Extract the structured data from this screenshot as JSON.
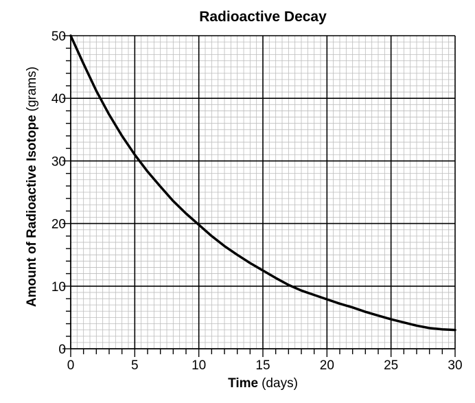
{
  "chart_data": {
    "type": "line",
    "title": "Radioactive Decay",
    "xlabel": "Time",
    "xlabel_unit": "(days)",
    "ylabel": "Amount of Radioactive Isotope",
    "ylabel_unit": "(grams)",
    "xlim": [
      0,
      30
    ],
    "ylim": [
      0,
      50
    ],
    "x_ticks": [
      "0",
      "5",
      "10",
      "15",
      "20",
      "25",
      "30"
    ],
    "y_ticks": [
      "0",
      "10",
      "20",
      "30",
      "40",
      "50"
    ],
    "grid": true,
    "minor_grid": true,
    "legend": "none",
    "series": [
      {
        "x": [
          0,
          1,
          2,
          3,
          4,
          5,
          6,
          7,
          8,
          9,
          10,
          11,
          12,
          13,
          14,
          15,
          16,
          17,
          18,
          19,
          20,
          21,
          22,
          23,
          24,
          25,
          26,
          27,
          28,
          29,
          30
        ],
        "values": [
          50,
          45.5,
          41.2,
          37.4,
          34.0,
          31.0,
          28.3,
          25.9,
          23.6,
          21.6,
          19.8,
          18.0,
          16.4,
          15.0,
          13.7,
          12.5,
          11.3,
          10.2,
          9.3,
          8.6,
          7.9,
          7.2,
          6.6,
          5.9,
          5.3,
          4.7,
          4.2,
          3.7,
          3.3,
          3.1,
          3.0
        ],
        "color": "#000000"
      }
    ]
  }
}
